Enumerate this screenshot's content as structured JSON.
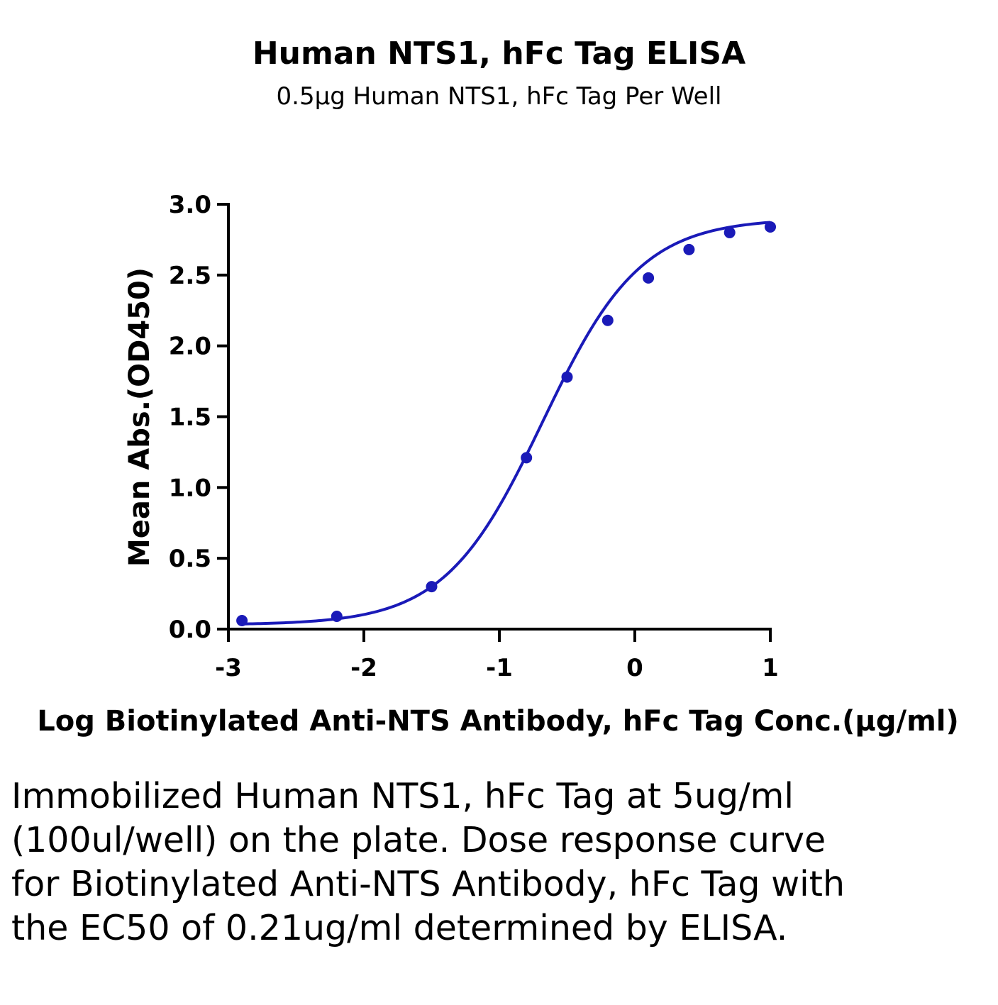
{
  "chart_data": {
    "type": "scatter",
    "title": "Human NTS1, hFc Tag ELISA",
    "subtitle": "0.5μg Human NTS1, hFc Tag Per Well",
    "xlabel": "Log Biotinylated Anti-NTS Antibody, hFc Tag Conc.(μg/ml)",
    "ylabel": "Mean Abs.(OD450)",
    "xlim": [
      -3,
      1
    ],
    "ylim": [
      0,
      3
    ],
    "x_ticks": [
      -3,
      -2,
      -1,
      0,
      1
    ],
    "x_tick_labels": [
      "-3",
      "-2",
      "-1",
      "0",
      "1"
    ],
    "y_ticks": [
      0,
      0.5,
      1,
      1.5,
      2,
      2.5,
      3
    ],
    "y_tick_labels": [
      "0.0",
      "0.5",
      "1.0",
      "1.5",
      "2.0",
      "2.5",
      "3.0"
    ],
    "grid": false,
    "series": [
      {
        "color": "#1a1ab8",
        "points": [
          {
            "x": -2.9,
            "y": 0.06
          },
          {
            "x": -2.2,
            "y": 0.09
          },
          {
            "x": -1.5,
            "y": 0.3
          },
          {
            "x": -0.8,
            "y": 1.21
          },
          {
            "x": -0.5,
            "y": 1.78
          },
          {
            "x": -0.2,
            "y": 2.18
          },
          {
            "x": 0.1,
            "y": 2.48
          },
          {
            "x": 0.4,
            "y": 2.68
          },
          {
            "x": 0.7,
            "y": 2.8
          },
          {
            "x": 1.0,
            "y": 2.84
          }
        ],
        "fit": {
          "model": "4PL",
          "bottom": 0.03,
          "top": 2.9,
          "log_ec50": -0.68,
          "hill": 1.2
        }
      }
    ]
  },
  "caption": "Immobilized Human NTS1, hFc Tag at 5ug/ml (100ul/well) on the plate. Dose response curve for Biotinylated Anti-NTS Antibody, hFc Tag with the EC50 of 0.21ug/ml determined by ELISA."
}
